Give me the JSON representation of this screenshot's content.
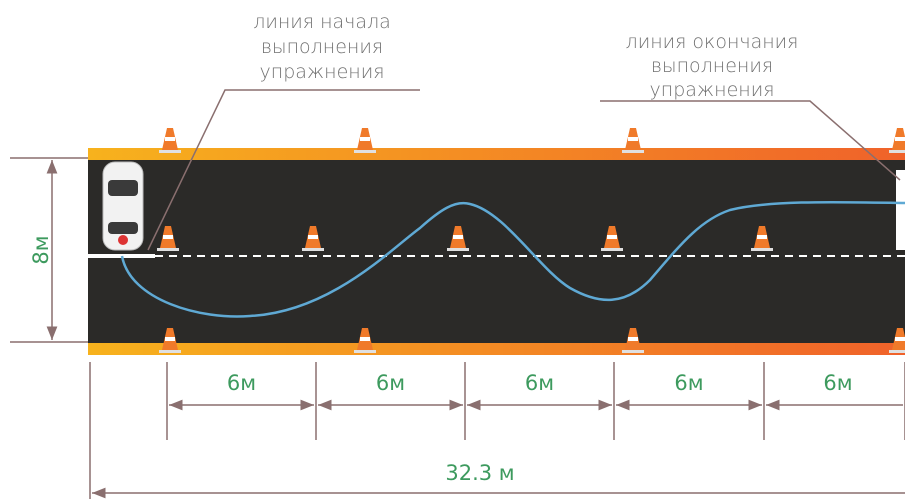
{
  "labels": {
    "start": [
      "линия начала",
      "выполнения",
      "упражнения"
    ],
    "end": [
      "линия окончания",
      "выполнения",
      "упражнения"
    ]
  },
  "dimensions": {
    "width": "8м",
    "segments": [
      "6м",
      "6м",
      "6м",
      "6м",
      "6м"
    ],
    "total": "32.3 м"
  }
}
